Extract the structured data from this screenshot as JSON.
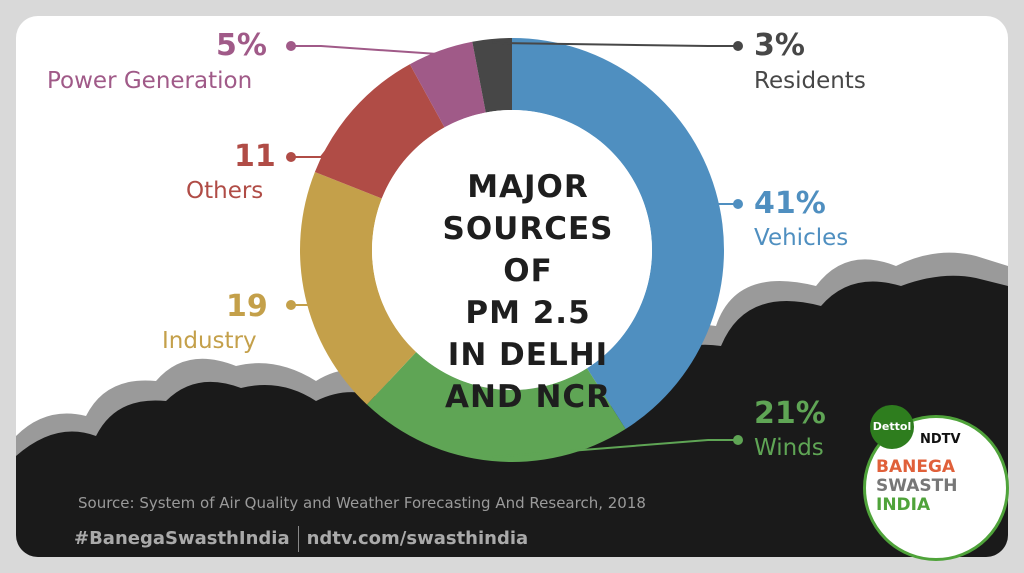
{
  "chart_data": {
    "type": "pie",
    "title": "MAJOR SOURCES OF PM 2.5 IN DELHI AND NCR",
    "categories": [
      "Vehicles",
      "Winds",
      "Industry",
      "Others",
      "Power Generation",
      "Residents"
    ],
    "values": [
      41,
      21,
      19,
      11,
      5,
      3
    ],
    "value_labels": [
      "41%",
      "21%",
      "19",
      "11",
      "5%",
      "3%"
    ],
    "colors": [
      "#4f8fc0",
      "#5fa555",
      "#c4a04a",
      "#b04c46",
      "#a05a88",
      "#474747"
    ],
    "title_lines": [
      "MAJOR",
      "SOURCES OF",
      "PM 2.5",
      "IN DELHI",
      "AND NCR"
    ]
  },
  "footer": {
    "source": "Source: System of Air Quality and Weather Forecasting And Research, 2018",
    "hashtag": "#BanegaSwasthIndia",
    "url": "ndtv.com/swasthindia"
  },
  "logo": {
    "dettol": "Dettol",
    "ndtv": "NDTV",
    "line1": "BANEGA",
    "line2": "SWASTH",
    "line3": "INDIA"
  }
}
